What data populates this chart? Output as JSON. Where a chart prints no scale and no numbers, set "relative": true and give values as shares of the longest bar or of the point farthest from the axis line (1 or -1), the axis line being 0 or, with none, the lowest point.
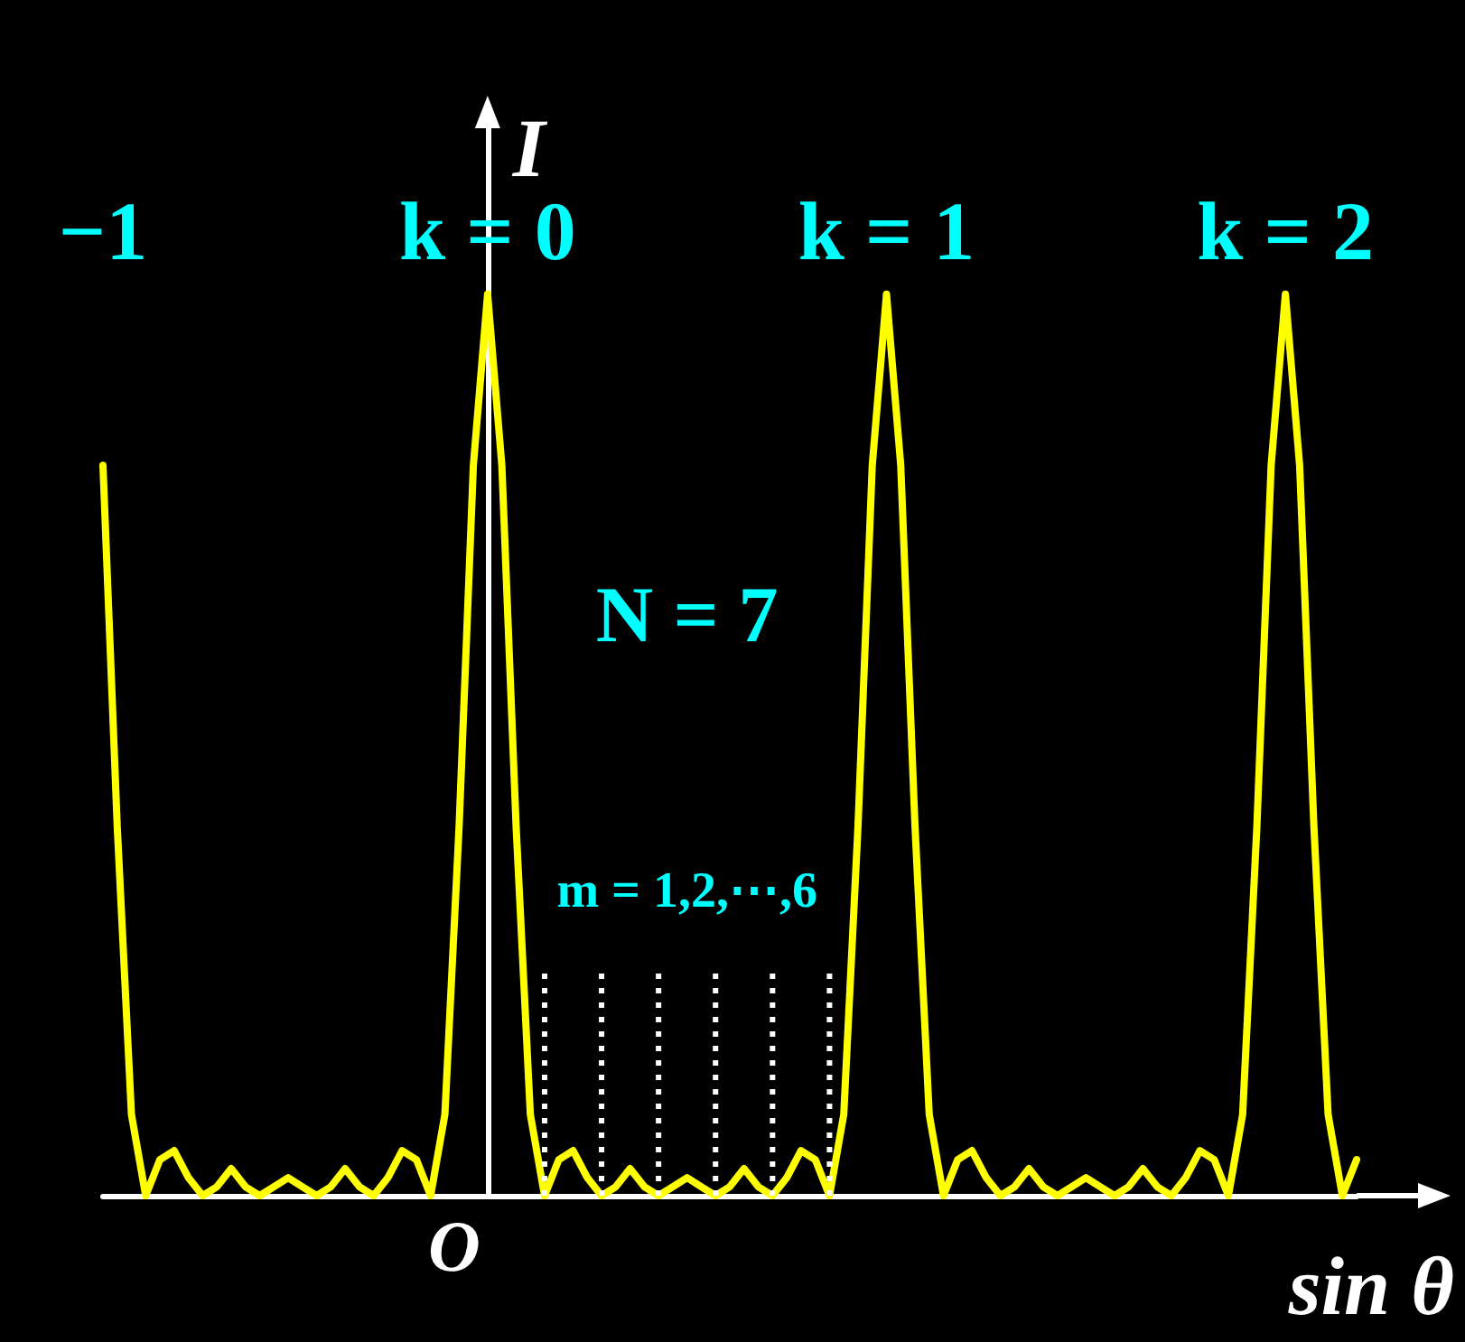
{
  "chart_data": {
    "type": "line",
    "relative": true,
    "xlabel": "sin θ",
    "ylabel": "I",
    "color": "#ffff00",
    "marker": "none",
    "line_style": "solid",
    "tick_labels": false,
    "categories": [
      null,
      null,
      null,
      null,
      null,
      null,
      null,
      null,
      null,
      null,
      null,
      null,
      null,
      null,
      null,
      null,
      null,
      null,
      null,
      null,
      null,
      null,
      null,
      null,
      null,
      null,
      null,
      null,
      null,
      null,
      null,
      null,
      null,
      null,
      null,
      null,
      null,
      null,
      null,
      null,
      null,
      null,
      null,
      null,
      null,
      null,
      null,
      null,
      null,
      null,
      null,
      null,
      null,
      null,
      null,
      null,
      null,
      null,
      null,
      null,
      null,
      null,
      null,
      null,
      null,
      null,
      null,
      null,
      null,
      null,
      null,
      null,
      null,
      null,
      null,
      null,
      null,
      null,
      null,
      null,
      null,
      null,
      null,
      null,
      null,
      null,
      null,
      null,
      null
    ],
    "values": [
      0.81,
      0.41,
      0.09,
      0,
      0.04,
      0.05,
      0.02,
      0,
      0.01,
      0.03,
      0.01,
      0,
      0.01,
      0.02,
      0.01,
      0,
      0.01,
      0.03,
      0.01,
      0,
      0.02,
      0.05,
      0.04,
      0,
      0.09,
      0.41,
      0.81,
      1,
      0.81,
      0.41,
      0.09,
      0,
      0.04,
      0.05,
      0.02,
      0,
      0.01,
      0.03,
      0.01,
      0,
      0.01,
      0.02,
      0.01,
      0,
      0.01,
      0.03,
      0.01,
      0,
      0.02,
      0.05,
      0.04,
      0,
      0.09,
      0.41,
      0.81,
      1,
      0.81,
      0.41,
      0.09,
      0,
      0.04,
      0.05,
      0.02,
      0,
      0.01,
      0.03,
      0.01,
      0,
      0.01,
      0.02,
      0.01,
      0,
      0.01,
      0.03,
      0.01,
      0,
      0.02,
      0.05,
      0.04,
      0,
      0.09,
      0.41,
      0.81,
      1,
      0.81,
      0.41,
      0.09,
      0,
      0.04
    ],
    "annotations": [
      "−1",
      "k = 0",
      "k = 1",
      "k = 2",
      "O",
      "N = 7",
      "m = 1,2,⋯,6"
    ]
  }
}
